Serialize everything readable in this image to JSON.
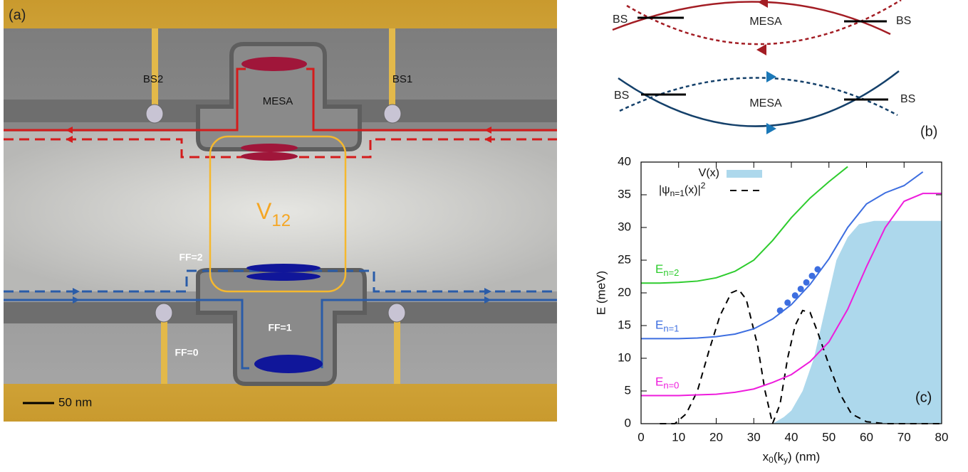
{
  "panel_a": {
    "label": "(a)",
    "beam_splitters": [
      "BS2",
      "BS1"
    ],
    "mesa": "MESA",
    "coupling": [
      "V",
      "12"
    ],
    "filling_factors": [
      "FF=2",
      "FF=1",
      "FF=0"
    ],
    "scale_bar": "50 nm"
  },
  "panel_b": {
    "label": "(b)",
    "top": {
      "beam_splitters": [
        "BS",
        "BS"
      ],
      "mesa": "MESA"
    },
    "bottom": {
      "beam_splitters": [
        "BS",
        "BS"
      ],
      "mesa": "MESA"
    }
  },
  "chart_data": {
    "type": "line",
    "panel_label": "(c)",
    "ylabel": "E (meV)",
    "xlabel": [
      "x",
      "0",
      "(k",
      "y",
      ") (nm)"
    ],
    "xlim": [
      0,
      80
    ],
    "xticks": [
      0,
      10,
      20,
      30,
      40,
      50,
      60,
      70,
      80
    ],
    "ylim": [
      0,
      40
    ],
    "yticks": [
      0,
      5,
      10,
      15,
      20,
      25,
      30,
      35,
      40
    ],
    "series": [
      {
        "name": [
          "V(x)"
        ],
        "kind": "area",
        "color": "#add8ec",
        "x": [
          35,
          38,
          40,
          43,
          46,
          48,
          50,
          52,
          55,
          58,
          62,
          70,
          80
        ],
        "values": [
          0,
          1,
          2,
          5,
          10,
          15,
          20,
          25,
          28.5,
          30.5,
          31,
          31,
          31
        ]
      },
      {
        "name": [
          "|ψ",
          "n=1",
          "(x)|",
          "2"
        ],
        "kind": "line",
        "style": "dashed",
        "color": "#000000",
        "x": [
          5,
          9,
          12,
          15,
          18,
          21,
          24,
          26,
          28,
          31,
          33,
          35,
          37,
          39,
          41,
          43,
          45,
          47,
          50,
          53,
          56,
          60,
          65,
          80
        ],
        "values": [
          0,
          0,
          1.5,
          5,
          11,
          16.5,
          20,
          20.5,
          19,
          12,
          5,
          0,
          3,
          10,
          15,
          17.3,
          17,
          14,
          9,
          4.5,
          1.5,
          0.3,
          0,
          0
        ]
      },
      {
        "name": [
          "E",
          "n=2"
        ],
        "kind": "line",
        "style": "solid",
        "color": "#2ecc2e",
        "x": [
          0,
          5,
          10,
          15,
          20,
          25,
          30,
          35,
          40,
          45,
          50,
          55
        ],
        "values": [
          21.5,
          21.5,
          21.6,
          21.8,
          22.3,
          23.3,
          25,
          28,
          31.5,
          34.5,
          37,
          39.3
        ]
      },
      {
        "name": [
          "E",
          "n=1"
        ],
        "kind": "line",
        "style": "solid",
        "color": "#3d6ee0",
        "x": [
          0,
          5,
          10,
          15,
          20,
          25,
          30,
          35,
          40,
          45,
          50,
          55,
          60,
          65,
          70,
          75
        ],
        "values": [
          13,
          13,
          13,
          13.1,
          13.3,
          13.7,
          14.5,
          16,
          18.2,
          21.3,
          25.2,
          30,
          33.6,
          35.3,
          36.4,
          38.5
        ]
      },
      {
        "name": [
          "E",
          "n=0"
        ],
        "kind": "line",
        "style": "solid",
        "color": "#ee1cdc",
        "x": [
          0,
          5,
          10,
          15,
          20,
          25,
          30,
          35,
          40,
          45,
          50,
          55,
          60,
          65,
          70,
          75,
          80
        ],
        "values": [
          4.3,
          4.3,
          4.3,
          4.4,
          4.5,
          4.8,
          5.3,
          6.3,
          7.5,
          9.5,
          12.5,
          17.5,
          24,
          30,
          34,
          35.2,
          35.2
        ]
      }
    ],
    "markers": {
      "color": "#3d6ee0",
      "x": [
        37,
        39,
        41,
        42.5,
        44,
        45.5,
        47
      ],
      "values": [
        17.3,
        18.5,
        19.6,
        20.6,
        21.6,
        22.6,
        23.6
      ]
    }
  }
}
